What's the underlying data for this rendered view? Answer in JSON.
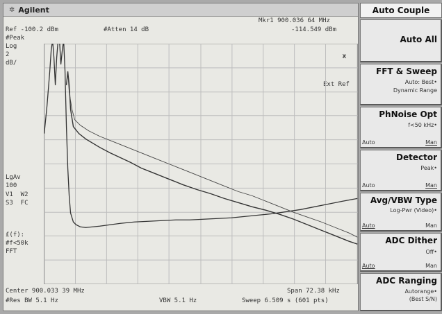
{
  "header": {
    "brand": "Agilent",
    "logo_icon": "agilent-spark-icon"
  },
  "marker": {
    "label": "Mkr1 900.036 64 MHz",
    "value": "-114.549 dBm",
    "symbol": "x"
  },
  "ref": {
    "level": "Ref -100.2 dBm",
    "atten": "#Atten 14 dB"
  },
  "left_annotations": {
    "detector": "#Peak",
    "scale": "Log",
    "scale_value": "2",
    "scale_unit": "dB/",
    "avg": "LgAv",
    "avg_count": "100",
    "traces": "V1  W2",
    "traces2": "S3  FC",
    "phnoise": "£(f):",
    "phnoise_val": "#f<50k",
    "fft": "FFT"
  },
  "ext_ref": "Ext Ref",
  "footer": {
    "center": "Center 900.033 39 MHz",
    "span": "Span 72.38 kHz",
    "rbw": "#Res BW 5.1 Hz",
    "vbw": "VBW 5.1 Hz",
    "sweep": "Sweep 6.509 s (601 pts)"
  },
  "softkeys": {
    "menu_title": "Auto Couple",
    "auto_all": "Auto All",
    "fft_sweep": {
      "label": "FFT & Sweep",
      "line1": "Auto: Best•",
      "line2": "Dynamic Range"
    },
    "phnoise": {
      "label": "PhNoise Opt",
      "line1": "f<50 kHz•",
      "auto": "Auto",
      "man": "Man"
    },
    "detector": {
      "label": "Detector",
      "line1": "Peak•",
      "auto": "Auto",
      "man": "Man"
    },
    "avg_vbw": {
      "label": "Avg/VBW Type",
      "line1": "Log-Pwr (Video)•",
      "auto": "Auto",
      "man": "Man"
    },
    "adc_dither": {
      "label": "ADC Dither",
      "line1": "Off•",
      "auto": "Auto",
      "man": "Man"
    },
    "adc_ranging": {
      "label": "ADC Ranging",
      "line1": "Autorange•",
      "line2": "(Best S/N)"
    }
  },
  "colors": {
    "screen_bg": "#e9e9e4",
    "grid": "#b9b9b9",
    "trace": "#333333"
  }
}
